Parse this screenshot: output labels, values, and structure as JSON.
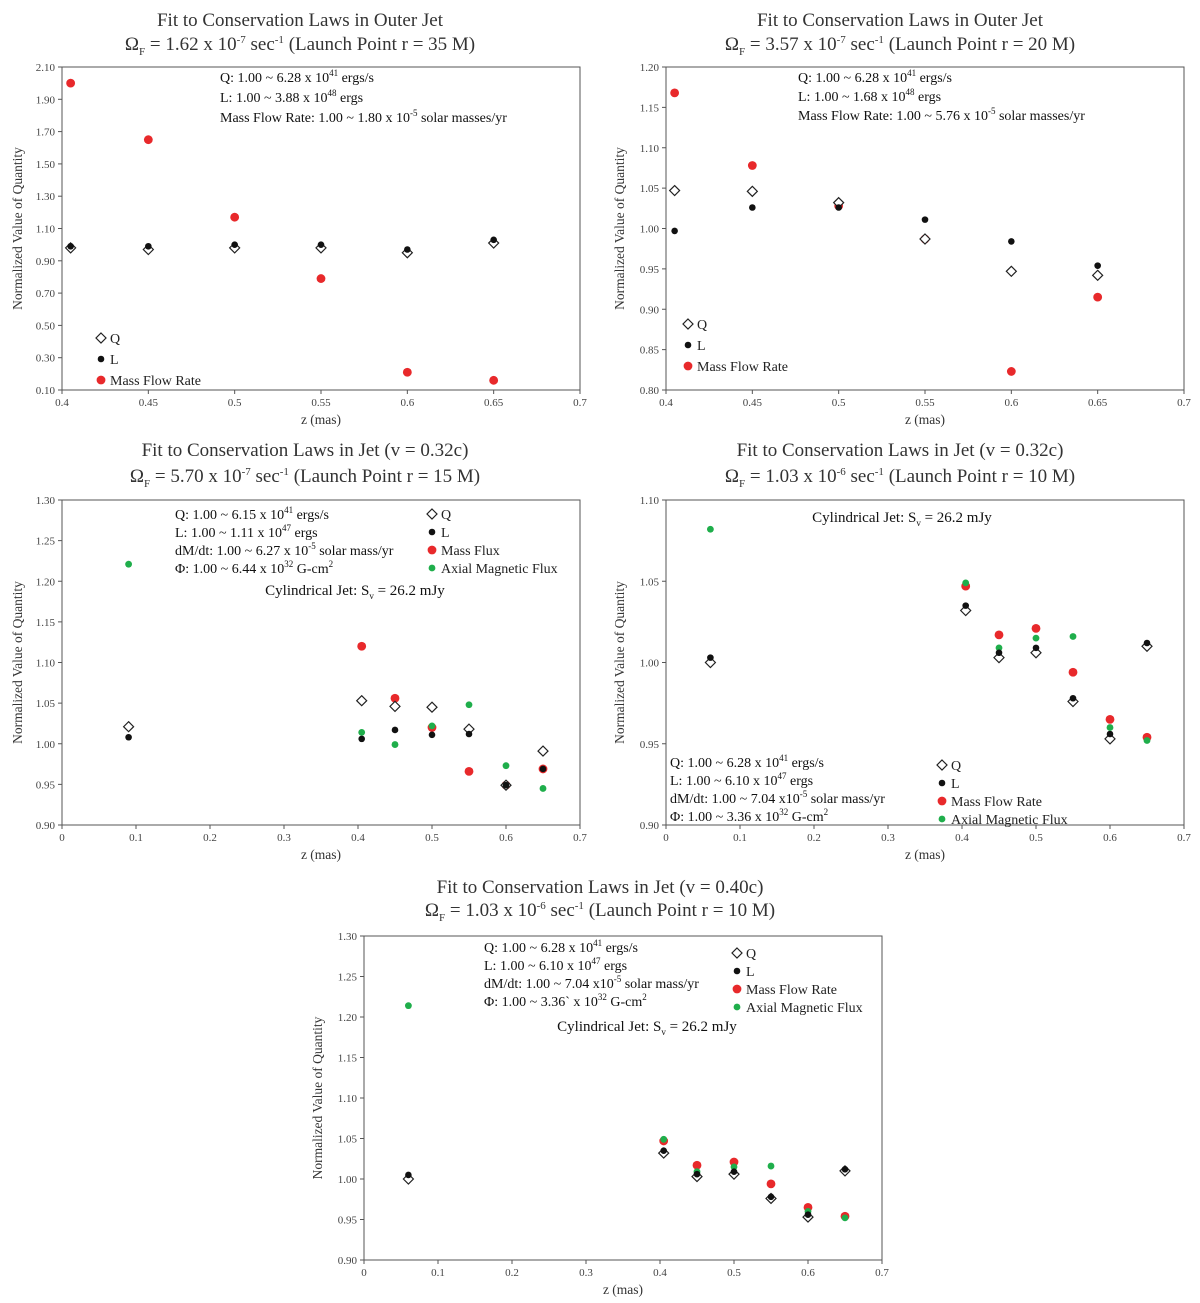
{
  "chart_data": [
    {
      "type": "scatter",
      "title": "Fit to Conservation Laws in Outer Jet",
      "subtitle": {
        "pre": "Ω",
        "sub": "F",
        "mid": " = 1.62 x 10",
        "sup": "-7",
        "post": " sec",
        "sup2": "-1",
        "tail": " (Launch Point r = 35 M)"
      },
      "xlabel": "z (mas)",
      "ylabel": "Normalized Value of Quantity",
      "xlim": [
        0.4,
        0.7
      ],
      "ylim": [
        0.1,
        2.1
      ],
      "xticks": [
        "0.4",
        "0.45",
        "0.5",
        "0.55",
        "0.6",
        "0.65",
        "0.7"
      ],
      "yticks": [
        "0.10",
        "0.30",
        "0.50",
        "0.70",
        "0.90",
        "1.10",
        "1.30",
        "1.50",
        "1.70",
        "1.90",
        "2.10"
      ],
      "notes": [
        {
          "text": "Q: 1.00 ~ 6.28 x 10",
          "sup": "41",
          "tail": " ergs/s"
        },
        {
          "text": "L: 1.00 ~ 3.88 x 10",
          "sup": "48",
          "tail": " ergs"
        },
        {
          "text": "Mass Flow Rate: 1.00 ~ 1.80 x 10",
          "sup": "-5",
          "tail": " solar masses/yr"
        }
      ],
      "series": [
        {
          "name": "Q",
          "marker": "diamond",
          "color": "#222222",
          "x": [
            0.405,
            0.45,
            0.5,
            0.55,
            0.6,
            0.65
          ],
          "y": [
            0.98,
            0.97,
            0.98,
            0.98,
            0.95,
            1.01
          ]
        },
        {
          "name": "L",
          "marker": "dot",
          "color": "#111111",
          "x": [
            0.405,
            0.45,
            0.5,
            0.55,
            0.6,
            0.65
          ],
          "y": [
            0.99,
            0.99,
            1.0,
            1.0,
            0.97,
            1.03
          ]
        },
        {
          "name": "Mass Flow Rate",
          "marker": "red",
          "color": "#e8292b",
          "x": [
            0.405,
            0.45,
            0.5,
            0.55,
            0.6,
            0.65
          ],
          "y": [
            2.0,
            1.65,
            1.17,
            0.79,
            0.21,
            0.16
          ]
        }
      ]
    },
    {
      "type": "scatter",
      "title": "Fit to Conservation Laws in Outer Jet",
      "subtitle": {
        "pre": "Ω",
        "sub": "F",
        "mid": " = 3.57 x 10",
        "sup": "-7",
        "post": " sec",
        "sup2": "-1",
        "tail": " (Launch Point r = 20 M)"
      },
      "xlabel": "z (mas)",
      "ylabel": "Normalized Value of Quantity",
      "xlim": [
        0.4,
        0.7
      ],
      "ylim": [
        0.8,
        1.2
      ],
      "xticks": [
        "0.4",
        "0.45",
        "0.5",
        "0.55",
        "0.6",
        "0.65",
        "0.7"
      ],
      "yticks": [
        "0.80",
        "0.85",
        "0.90",
        "0.95",
        "1.00",
        "1.05",
        "1.10",
        "1.15",
        "1.20"
      ],
      "notes": [
        {
          "text": "Q: 1.00 ~ 6.28 x 10",
          "sup": "41",
          "tail": " ergs/s"
        },
        {
          "text": "L: 1.00 ~ 1.68 x 10",
          "sup": "48",
          "tail": " ergs"
        },
        {
          "text": "Mass Flow Rate: 1.00 ~ 5.76 x 10",
          "sup": "-5",
          "tail": "  solar masses/yr"
        }
      ],
      "series": [
        {
          "name": "Q",
          "marker": "diamond",
          "color": "#222222",
          "x": [
            0.405,
            0.45,
            0.5,
            0.55,
            0.6,
            0.65
          ],
          "y": [
            1.047,
            1.046,
            1.032,
            0.987,
            0.947,
            0.942
          ]
        },
        {
          "name": "L",
          "marker": "dot",
          "color": "#111111",
          "x": [
            0.405,
            0.45,
            0.5,
            0.55,
            0.6,
            0.65
          ],
          "y": [
            0.997,
            1.026,
            1.026,
            1.011,
            0.984,
            0.954
          ]
        },
        {
          "name": "Mass Flow Rate",
          "marker": "red",
          "color": "#e8292b",
          "x": [
            0.405,
            0.45,
            0.5,
            0.55,
            0.6,
            0.65
          ],
          "y": [
            1.168,
            1.078,
            1.028,
            0.987,
            0.823,
            0.915
          ]
        }
      ]
    },
    {
      "type": "scatter",
      "title": "Fit to Conservation Laws in Jet (v = 0.32c)",
      "subtitle": {
        "pre": "Ω",
        "sub": "F",
        "mid": " = 5.70 x 10",
        "sup": "-7",
        "post": " sec",
        "sup2": "-1",
        "tail": " (Launch Point r = 15 M)"
      },
      "xlabel": "z (mas)",
      "ylabel": "Normalized Value of Quantity",
      "xlim": [
        0,
        0.7
      ],
      "ylim": [
        0.9,
        1.3
      ],
      "xticks": [
        "0",
        "0.1",
        "0.2",
        "0.3",
        "0.4",
        "0.5",
        "0.6",
        "0.7"
      ],
      "yticks": [
        "0.90",
        "0.95",
        "1.00",
        "1.05",
        "1.10",
        "1.15",
        "1.20",
        "1.25",
        "1.30"
      ],
      "notes": [
        {
          "text": "Q: 1.00 ~ 6.15 x 10",
          "sup": "41",
          "tail": " ergs/s"
        },
        {
          "text": "L: 1.00 ~ 1.11 x 10",
          "sup": "47",
          "tail": " ergs"
        },
        {
          "text": "dM/dt: 1.00 ~ 6.27 x 10",
          "sup": "-5",
          "tail": " solar mass/yr"
        },
        {
          "text": "Φ: 1.00 ~ 6.44 x 10",
          "sup": "32",
          "tail": " G-cm",
          "sup3": "2"
        }
      ],
      "label_pre": "Cylindrical Jet: S",
      "label_sub": "v",
      "label_post": " = 26.2 mJy",
      "series": [
        {
          "name": "Q",
          "marker": "diamond",
          "color": "#222222",
          "x": [
            0.09,
            0.405,
            0.45,
            0.5,
            0.55,
            0.6,
            0.65
          ],
          "y": [
            1.021,
            1.053,
            1.046,
            1.045,
            1.018,
            0.949,
            0.991
          ]
        },
        {
          "name": "L",
          "marker": "dot",
          "color": "#111111",
          "x": [
            0.09,
            0.405,
            0.45,
            0.5,
            0.55,
            0.6,
            0.65
          ],
          "y": [
            1.008,
            1.006,
            1.017,
            1.011,
            1.012,
            0.949,
            0.969
          ]
        },
        {
          "name": "Mass Flux",
          "marker": "red",
          "color": "#e8292b",
          "x": [
            0.405,
            0.45,
            0.5,
            0.55,
            0.6,
            0.65
          ],
          "y": [
            1.12,
            1.056,
            1.02,
            0.966,
            0.949,
            0.969
          ]
        },
        {
          "name": "Axial Magnetic Flux",
          "marker": "green",
          "color": "#1fae4b",
          "x": [
            0.09,
            0.405,
            0.45,
            0.5,
            0.55,
            0.6,
            0.65
          ],
          "y": [
            1.221,
            1.014,
            0.999,
            1.022,
            1.048,
            0.973,
            0.945
          ]
        }
      ]
    },
    {
      "type": "scatter",
      "title": "Fit to Conservation Laws in Jet (v = 0.32c)",
      "subtitle": {
        "pre": "Ω",
        "sub": "F",
        "mid": " = 1.03 x 10",
        "sup": "-6",
        "post": " sec",
        "sup2": "-1",
        "tail": " (Launch Point r = 10 M)"
      },
      "xlabel": "z (mas)",
      "ylabel": "Normalized Value of Quantity",
      "xlim": [
        0,
        0.7
      ],
      "ylim": [
        0.9,
        1.1
      ],
      "xticks": [
        "0",
        "0.1",
        "0.2",
        "0.3",
        "0.4",
        "0.5",
        "0.6",
        "0.7"
      ],
      "yticks": [
        "0.90",
        "0.95",
        "1.00",
        "1.05",
        "1.10"
      ],
      "notes": [
        {
          "text": "Q: 1.00 ~ 6.28 x 10",
          "sup": "41",
          "tail": " ergs/s"
        },
        {
          "text": "L: 1.00 ~ 6.10 x 10",
          "sup": "47",
          "tail": " ergs"
        },
        {
          "text": "dM/dt: 1.00 ~ 7.04 x10",
          "sup": "-5",
          "tail": " solar mass/yr"
        },
        {
          "text": "Φ: 1.00 ~ 3.36 x 10",
          "sup": "32",
          "tail": " G-cm",
          "sup3": "2"
        }
      ],
      "label_pre": "Cylindrical Jet: S",
      "label_sub": "v",
      "label_post": " = 26.2 mJy",
      "series": [
        {
          "name": "Q",
          "marker": "diamond",
          "color": "#222222",
          "x": [
            0.06,
            0.405,
            0.45,
            0.5,
            0.55,
            0.6,
            0.65
          ],
          "y": [
            1.0,
            1.032,
            1.003,
            1.006,
            0.976,
            0.953,
            1.01
          ]
        },
        {
          "name": "L",
          "marker": "dot",
          "color": "#111111",
          "x": [
            0.06,
            0.405,
            0.45,
            0.5,
            0.55,
            0.6,
            0.65
          ],
          "y": [
            1.003,
            1.035,
            1.006,
            1.009,
            0.978,
            0.956,
            1.012
          ]
        },
        {
          "name": "Mass Flow Rate",
          "marker": "red",
          "color": "#e8292b",
          "x": [
            0.405,
            0.45,
            0.5,
            0.55,
            0.6,
            0.65
          ],
          "y": [
            1.047,
            1.017,
            1.021,
            0.994,
            0.965,
            0.954
          ]
        },
        {
          "name": "Axial Magnetic Flux",
          "marker": "green",
          "color": "#1fae4b",
          "x": [
            0.06,
            0.405,
            0.45,
            0.5,
            0.55,
            0.6,
            0.65
          ],
          "y": [
            1.082,
            1.049,
            1.009,
            1.015,
            1.016,
            0.96,
            0.952
          ]
        }
      ]
    },
    {
      "type": "scatter",
      "title": "Fit to Conservation Laws in Jet (v = 0.40c)",
      "subtitle": {
        "pre": "Ω",
        "sub": "F",
        "mid": " = 1.03 x 10",
        "sup": "-6",
        "post": " sec",
        "sup2": "-1",
        "tail": " (Launch Point r = 10 M)"
      },
      "xlabel": "z (mas)",
      "ylabel": "Normalized Value of Quantity",
      "xlim": [
        0,
        0.7
      ],
      "ylim": [
        0.9,
        1.3
      ],
      "xticks": [
        "0",
        "0.1",
        "0.2",
        "0.3",
        "0.4",
        "0.5",
        "0.6",
        "0.7"
      ],
      "yticks": [
        "0.90",
        "0.95",
        "1.00",
        "1.05",
        "1.10",
        "1.15",
        "1.20",
        "1.25",
        "1.30"
      ],
      "notes": [
        {
          "text": "Q: 1.00 ~ 6.28 x 10",
          "sup": "41",
          "tail": " ergs/s"
        },
        {
          "text": "L: 1.00 ~ 6.10 x 10",
          "sup": "47",
          "tail": " ergs"
        },
        {
          "text": "dM/dt: 1.00 ~ 7.04 x10",
          "sup": "-5",
          "tail": " solar mass/yr"
        },
        {
          "text": "Φ: 1.00 ~ 3.36` x 10",
          "sup": "32",
          "tail": " G-cm",
          "sup3": "2"
        }
      ],
      "label_pre": "Cylindrical Jet: S",
      "label_sub": "v",
      "label_post": " = 26.2 mJy",
      "series": [
        {
          "name": "Q",
          "marker": "diamond",
          "color": "#222222",
          "x": [
            0.06,
            0.405,
            0.45,
            0.5,
            0.55,
            0.6,
            0.65
          ],
          "y": [
            1.0,
            1.032,
            1.003,
            1.006,
            0.976,
            0.953,
            1.01
          ]
        },
        {
          "name": "L",
          "marker": "dot",
          "color": "#111111",
          "x": [
            0.06,
            0.405,
            0.45,
            0.5,
            0.55,
            0.6,
            0.65
          ],
          "y": [
            1.005,
            1.035,
            1.006,
            1.009,
            0.978,
            0.956,
            1.012
          ]
        },
        {
          "name": "Mass Flow Rate",
          "marker": "red",
          "color": "#e8292b",
          "x": [
            0.405,
            0.45,
            0.5,
            0.55,
            0.6,
            0.65
          ],
          "y": [
            1.047,
            1.017,
            1.021,
            0.994,
            0.965,
            0.954
          ]
        },
        {
          "name": "Axial Magnetic Flux",
          "marker": "green",
          "color": "#1fae4b",
          "x": [
            0.06,
            0.405,
            0.45,
            0.5,
            0.55,
            0.6,
            0.65
          ],
          "y": [
            1.214,
            1.049,
            1.009,
            1.015,
            1.016,
            0.96,
            0.952
          ]
        }
      ]
    }
  ]
}
